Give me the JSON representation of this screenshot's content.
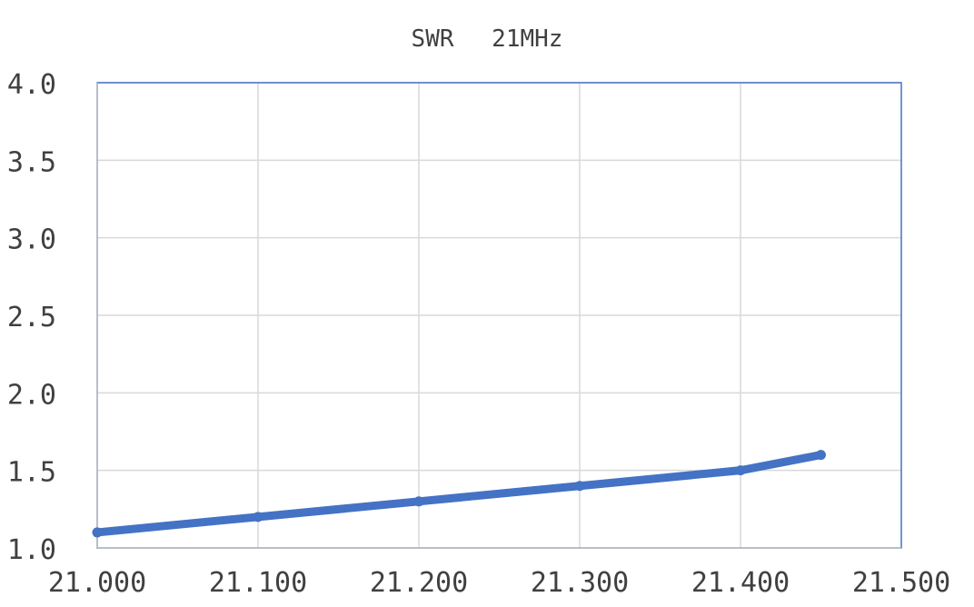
{
  "chart_data": {
    "type": "line",
    "title": "SWR　 21MHz",
    "xlabel": "",
    "ylabel": "",
    "xlim": [
      21.0,
      21.5
    ],
    "ylim": [
      1.0,
      4.0
    ],
    "x_ticks": [
      "21.000",
      "21.100",
      "21.200",
      "21.300",
      "21.400",
      "21.500"
    ],
    "y_ticks": [
      "1.0",
      "1.5",
      "2.0",
      "2.5",
      "3.0",
      "3.5",
      "4.0"
    ],
    "grid": true,
    "legend": "none",
    "series": [
      {
        "color": "#4472C4",
        "x": [
          21.0,
          21.1,
          21.2,
          21.3,
          21.4,
          21.45
        ],
        "y": [
          1.1,
          1.2,
          1.3,
          1.4,
          1.5,
          1.6
        ]
      }
    ]
  }
}
